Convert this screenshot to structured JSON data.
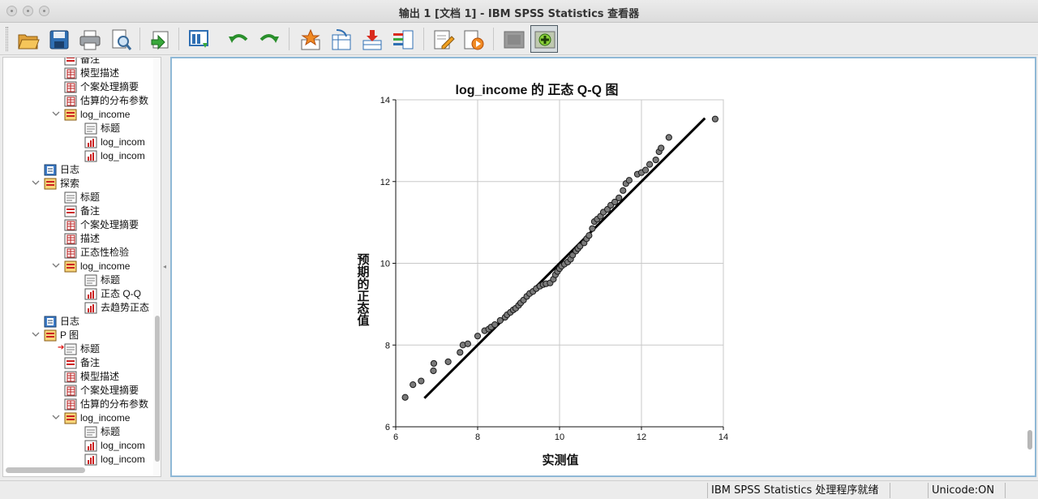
{
  "window": {
    "title": "输出 1 [文档 1] - IBM SPSS Statistics 查看器"
  },
  "toolbar": {
    "buttons": [
      {
        "name": "open-icon"
      },
      {
        "name": "save-icon"
      },
      {
        "name": "print-icon"
      },
      {
        "name": "print-preview-icon"
      },
      {
        "name": "export-icon"
      },
      {
        "name": "recall-dialog-icon"
      },
      {
        "name": "undo-icon"
      },
      {
        "name": "redo-icon"
      },
      {
        "name": "goto-case-icon"
      },
      {
        "name": "goto-variable-icon"
      },
      {
        "name": "insert-cases-icon"
      },
      {
        "name": "variables-icon"
      },
      {
        "name": "edit-output-icon"
      },
      {
        "name": "run-script-icon"
      },
      {
        "name": "hide-icon"
      },
      {
        "name": "show-icon"
      }
    ]
  },
  "outline": {
    "items": [
      {
        "label": "备注",
        "type": "notes"
      },
      {
        "label": "模型描述",
        "type": "table"
      },
      {
        "label": "个案处理摘要",
        "type": "table"
      },
      {
        "label": "估算的分布参数",
        "type": "table"
      },
      {
        "label": "log_income",
        "type": "folder"
      },
      {
        "label": "标题",
        "type": "title"
      },
      {
        "label": "log_incom",
        "type": "chart"
      },
      {
        "label": "log_incom",
        "type": "chart"
      },
      {
        "label": "日志",
        "type": "log"
      },
      {
        "label": "探索",
        "type": "folder"
      },
      {
        "label": "标题",
        "type": "title"
      },
      {
        "label": "备注",
        "type": "notes"
      },
      {
        "label": "个案处理摘要",
        "type": "table"
      },
      {
        "label": "描述",
        "type": "table"
      },
      {
        "label": "正态性检验",
        "type": "table"
      },
      {
        "label": "log_income",
        "type": "folder"
      },
      {
        "label": "标题",
        "type": "title"
      },
      {
        "label": "正态 Q-Q",
        "type": "chart"
      },
      {
        "label": "去趋势正态",
        "type": "chart"
      },
      {
        "label": "日志",
        "type": "log"
      },
      {
        "label": "P 图",
        "type": "folder"
      },
      {
        "label": "标题",
        "type": "title"
      },
      {
        "label": "备注",
        "type": "notes"
      },
      {
        "label": "模型描述",
        "type": "table"
      },
      {
        "label": "个案处理摘要",
        "type": "table"
      },
      {
        "label": "估算的分布参数",
        "type": "table"
      },
      {
        "label": "log_income",
        "type": "folder"
      },
      {
        "label": "标题",
        "type": "title"
      },
      {
        "label": "log_incom",
        "type": "chart"
      },
      {
        "label": "log_incom",
        "type": "chart"
      }
    ]
  },
  "chart_data": {
    "type": "scatter",
    "title": "log_income 的 正态 Q-Q 图",
    "xlabel": "实测值",
    "ylabel": "预期的正态值",
    "xlim": [
      6,
      14
    ],
    "ylim": [
      6,
      14
    ],
    "x_ticks": [
      "6",
      "8",
      "10",
      "12",
      "14"
    ],
    "y_ticks": [
      "6",
      "8",
      "10",
      "12",
      "14"
    ],
    "grid": true,
    "reference_line": {
      "x": [
        6.7,
        13.55
      ],
      "y": [
        6.7,
        13.55
      ]
    },
    "points": [
      [
        6.23,
        6.72
      ],
      [
        6.42,
        7.03
      ],
      [
        6.62,
        7.12
      ],
      [
        6.92,
        7.37
      ],
      [
        6.93,
        7.55
      ],
      [
        7.28,
        7.59
      ],
      [
        7.57,
        7.82
      ],
      [
        7.64,
        8.0
      ],
      [
        7.76,
        8.03
      ],
      [
        8.0,
        8.22
      ],
      [
        8.17,
        8.35
      ],
      [
        8.27,
        8.39
      ],
      [
        8.33,
        8.44
      ],
      [
        8.42,
        8.5
      ],
      [
        8.55,
        8.6
      ],
      [
        8.67,
        8.68
      ],
      [
        8.72,
        8.74
      ],
      [
        8.8,
        8.8
      ],
      [
        8.87,
        8.86
      ],
      [
        8.93,
        8.9
      ],
      [
        9.0,
        8.97
      ],
      [
        9.05,
        9.03
      ],
      [
        9.12,
        9.1
      ],
      [
        9.2,
        9.19
      ],
      [
        9.27,
        9.26
      ],
      [
        9.35,
        9.31
      ],
      [
        9.43,
        9.38
      ],
      [
        9.52,
        9.44
      ],
      [
        9.6,
        9.48
      ],
      [
        9.67,
        9.5
      ],
      [
        9.77,
        9.52
      ],
      [
        9.85,
        9.61
      ],
      [
        9.9,
        9.72
      ],
      [
        9.95,
        9.8
      ],
      [
        10.0,
        9.87
      ],
      [
        10.05,
        9.93
      ],
      [
        10.12,
        9.98
      ],
      [
        10.2,
        10.03
      ],
      [
        10.27,
        10.1
      ],
      [
        10.32,
        10.2
      ],
      [
        10.4,
        10.3
      ],
      [
        10.45,
        10.36
      ],
      [
        10.5,
        10.42
      ],
      [
        10.6,
        10.5
      ],
      [
        10.66,
        10.6
      ],
      [
        10.72,
        10.68
      ],
      [
        10.8,
        10.85
      ],
      [
        10.85,
        11.02
      ],
      [
        10.92,
        11.08
      ],
      [
        11.0,
        11.15
      ],
      [
        11.07,
        11.25
      ],
      [
        11.17,
        11.32
      ],
      [
        11.25,
        11.42
      ],
      [
        11.35,
        11.5
      ],
      [
        11.45,
        11.6
      ],
      [
        11.55,
        11.78
      ],
      [
        11.62,
        11.95
      ],
      [
        11.7,
        12.03
      ],
      [
        11.9,
        12.18
      ],
      [
        12.0,
        12.22
      ],
      [
        12.1,
        12.28
      ],
      [
        12.2,
        12.42
      ],
      [
        12.35,
        12.53
      ],
      [
        12.43,
        12.73
      ],
      [
        12.48,
        12.82
      ],
      [
        12.67,
        13.08
      ],
      [
        13.8,
        13.53
      ]
    ]
  },
  "status": {
    "processor": "IBM SPSS Statistics 处理程序就绪",
    "unicode": "Unicode:ON"
  }
}
